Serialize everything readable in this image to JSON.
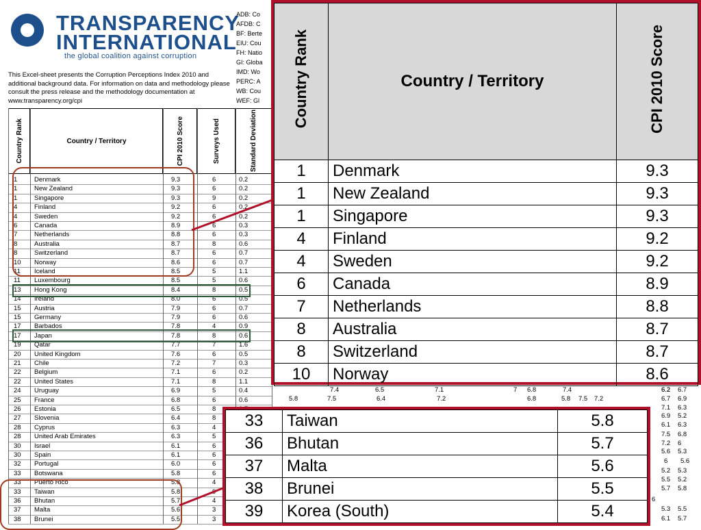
{
  "header": {
    "brand_line1": "TRANSPARENCY",
    "brand_line2": "INTERNATIONAL",
    "tagline": "the global coalition against corruption",
    "intro_text": "This Excel-sheet presents the Corruption Perceptions Index 2010 and additional background data. For information on data and methodology please consult the press release and the methodology documentation at www.transparency.org/cpi",
    "abbreviations": [
      "ADB: Co",
      "AFDB: C",
      "BF: Berte",
      "EIU: Cou",
      "FH: Natio",
      "GI: Globa",
      "IMD: Wo",
      "PERC: A",
      "WB: Cou",
      "WEF: Gl"
    ]
  },
  "sheet": {
    "columns": [
      "Country Rank",
      "Country / Territory",
      "CPI 2010 Score",
      "Surveys Used",
      "Standard Deviation"
    ],
    "rows": [
      [
        "1",
        "Denmark",
        "9.3",
        "6",
        "0.2"
      ],
      [
        "1",
        "New Zealand",
        "9.3",
        "6",
        "0.2"
      ],
      [
        "1",
        "Singapore",
        "9.3",
        "9",
        "0.2"
      ],
      [
        "4",
        "Finland",
        "9.2",
        "6",
        "0.2"
      ],
      [
        "4",
        "Sweden",
        "9.2",
        "6",
        "0.2"
      ],
      [
        "6",
        "Canada",
        "8.9",
        "6",
        "0.3"
      ],
      [
        "7",
        "Netherlands",
        "8.8",
        "6",
        "0.3"
      ],
      [
        "8",
        "Australia",
        "8.7",
        "8",
        "0.6"
      ],
      [
        "8",
        "Switzerland",
        "8.7",
        "6",
        "0.7"
      ],
      [
        "10",
        "Norway",
        "8.6",
        "6",
        "0.7"
      ],
      [
        "11",
        "Iceland",
        "8.5",
        "5",
        "1.1"
      ],
      [
        "11",
        "Luxembourg",
        "8.5",
        "5",
        "0.6"
      ],
      [
        "13",
        "Hong Kong",
        "8.4",
        "8",
        "0.5"
      ],
      [
        "14",
        "Ireland",
        "8.0",
        "6",
        "0.5"
      ],
      [
        "15",
        "Austria",
        "7.9",
        "6",
        "0.7"
      ],
      [
        "15",
        "Germany",
        "7.9",
        "6",
        "0.6"
      ],
      [
        "17",
        "Barbados",
        "7.8",
        "4",
        "0.9"
      ],
      [
        "17",
        "Japan",
        "7.8",
        "8",
        "0.6"
      ],
      [
        "19",
        "Qatar",
        "7.7",
        "7",
        "1.6"
      ],
      [
        "20",
        "United Kingdom",
        "7.6",
        "6",
        "0.5"
      ],
      [
        "21",
        "Chile",
        "7.2",
        "7",
        "0.3"
      ],
      [
        "22",
        "Belgium",
        "7.1",
        "6",
        "0.2"
      ],
      [
        "22",
        "United States",
        "7.1",
        "8",
        "1.1"
      ],
      [
        "24",
        "Uruguay",
        "6.9",
        "5",
        "0.4"
      ],
      [
        "25",
        "France",
        "6.8",
        "6",
        "0.6"
      ],
      [
        "26",
        "Estonia",
        "6.5",
        "8",
        "0.7"
      ],
      [
        "27",
        "Slovenia",
        "6.4",
        "8",
        "0.6"
      ],
      [
        "28",
        "Cyprus",
        "6.3",
        "4",
        "0.7"
      ],
      [
        "28",
        "United Arab Emirates",
        "6.3",
        "5",
        "0.6"
      ],
      [
        "30",
        "Israel",
        "6.1",
        "6",
        "0.7"
      ],
      [
        "30",
        "Spain",
        "6.1",
        "6",
        "0.7"
      ],
      [
        "32",
        "Portugal",
        "6.0",
        "6",
        "0.6"
      ],
      [
        "33",
        "Botswana",
        "5.8",
        "6",
        "0.9"
      ],
      [
        "33",
        "Puerto Rico",
        "5.8",
        "4",
        "0.8"
      ],
      [
        "33",
        "Taiwan",
        "5.8",
        "9",
        "0.6"
      ],
      [
        "36",
        "Bhutan",
        "5.7",
        "4",
        "0.5"
      ],
      [
        "37",
        "Malta",
        "5.6",
        "3",
        "0.6"
      ],
      [
        "38",
        "Brunei",
        "5.5",
        "3",
        "0.5"
      ]
    ]
  },
  "background_fragments": [
    "6.2",
    "7.4",
    "6.5",
    "7.1",
    "7",
    "6.8",
    "7.4",
    "6.2",
    "6.7",
    "5.8",
    "7.5",
    "6.4",
    "7.2",
    "6.8",
    "5.8",
    "7.5",
    "7.2",
    "6.7",
    "6.9",
    "7.1",
    "6.3",
    "6.9",
    "5.2",
    "6.1",
    "6.3",
    "7.5",
    "6.8",
    "7.2",
    "6",
    "5.6",
    "5.3",
    "6",
    "5.6",
    "5.2",
    "5.3",
    "5.5",
    "5.2",
    "5.7",
    "5.8",
    "6",
    "5.3",
    "5.5",
    "6.1",
    "5.7"
  ],
  "zoom_top": {
    "col_rank": "Country Rank",
    "col_country": "Country / Territory",
    "col_score": "CPI 2010 Score",
    "rows": [
      [
        "1",
        "Denmark",
        "9.3"
      ],
      [
        "1",
        "New Zealand",
        "9.3"
      ],
      [
        "1",
        "Singapore",
        "9.3"
      ],
      [
        "4",
        "Finland",
        "9.2"
      ],
      [
        "4",
        "Sweden",
        "9.2"
      ],
      [
        "6",
        "Canada",
        "8.9"
      ],
      [
        "7",
        "Netherlands",
        "8.8"
      ],
      [
        "8",
        "Australia",
        "8.7"
      ],
      [
        "8",
        "Switzerland",
        "8.7"
      ],
      [
        "10",
        "Norway",
        "8.6"
      ]
    ]
  },
  "zoom_bottom": {
    "rows": [
      [
        "33",
        "Taiwan",
        "5.8"
      ],
      [
        "36",
        "Bhutan",
        "5.7"
      ],
      [
        "37",
        "Malta",
        "5.6"
      ],
      [
        "38",
        "Brunei",
        "5.5"
      ],
      [
        "39",
        "Korea (South)",
        "5.4"
      ]
    ]
  },
  "colors": {
    "brand": "#1c4f8c",
    "oval": "#a0391e",
    "highlight_box": "#2e5a3c",
    "zoom_border": "#b0102a",
    "header_fill": "#d8d8d8"
  }
}
